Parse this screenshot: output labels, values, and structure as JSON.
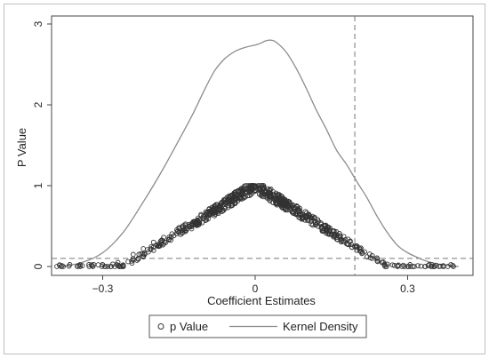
{
  "chart_data": {
    "type": "scatter",
    "title": "",
    "xlabel": "Coefficient Estimates",
    "ylabel": "P Value",
    "xlim": [
      -0.42,
      0.42
    ],
    "ylim": [
      0,
      3.05
    ],
    "xticks": [
      {
        "value": -0.3,
        "label": "−0.3"
      },
      {
        "value": 0,
        "label": "0"
      },
      {
        "value": 0.3,
        "label": "0.3"
      }
    ],
    "yticks": [
      {
        "value": 0,
        "label": "0"
      },
      {
        "value": 1,
        "label": "1"
      },
      {
        "value": 2,
        "label": "2"
      },
      {
        "value": 3,
        "label": "3"
      }
    ],
    "grid": false,
    "reference_lines": {
      "horizontal_y": 0.1,
      "vertical_x": 0.196
    },
    "legend": {
      "placement": "bottom",
      "entries": [
        {
          "label": "p Value",
          "marker": "hollow-circle"
        },
        {
          "label": "Kernel Density",
          "marker": "line"
        }
      ]
    },
    "series": [
      {
        "name": "Kernel Density",
        "kind": "line",
        "color": "#8c8c8c",
        "points": [
          [
            -0.38,
            0.0
          ],
          [
            -0.34,
            0.05
          ],
          [
            -0.3,
            0.17
          ],
          [
            -0.26,
            0.42
          ],
          [
            -0.22,
            0.8
          ],
          [
            -0.18,
            1.22
          ],
          [
            -0.14,
            1.68
          ],
          [
            -0.12,
            1.92
          ],
          [
            -0.1,
            2.18
          ],
          [
            -0.08,
            2.42
          ],
          [
            -0.06,
            2.57
          ],
          [
            -0.04,
            2.66
          ],
          [
            -0.02,
            2.71
          ],
          [
            0.0,
            2.74
          ],
          [
            0.01,
            2.76
          ],
          [
            0.02,
            2.79
          ],
          [
            0.03,
            2.8
          ],
          [
            0.04,
            2.78
          ],
          [
            0.06,
            2.66
          ],
          [
            0.08,
            2.46
          ],
          [
            0.1,
            2.21
          ],
          [
            0.12,
            1.94
          ],
          [
            0.14,
            1.7
          ],
          [
            0.16,
            1.44
          ],
          [
            0.18,
            1.26
          ],
          [
            0.2,
            1.05
          ],
          [
            0.22,
            0.85
          ],
          [
            0.24,
            0.62
          ],
          [
            0.26,
            0.42
          ],
          [
            0.28,
            0.26
          ],
          [
            0.3,
            0.17
          ],
          [
            0.32,
            0.11
          ],
          [
            0.34,
            0.06
          ],
          [
            0.37,
            0.02
          ],
          [
            0.4,
            0.0
          ]
        ]
      },
      {
        "name": "p Value",
        "kind": "scatter",
        "color": "#333333",
        "approximate_count": 700,
        "envelope": "points lie along p ≈ 1 − |x| / 0.26 with spread, peaking at 1.0 near x = 0; scattered points near p ≈ 0 for |x| > 0.25",
        "points": [
          [
            -0.39,
            0.0
          ],
          [
            -0.38,
            0.01
          ],
          [
            -0.35,
            0.0
          ],
          [
            -0.34,
            0.01
          ],
          [
            -0.3,
            0.02
          ],
          [
            -0.29,
            0.0
          ],
          [
            -0.28,
            0.03
          ],
          [
            -0.27,
            0.05
          ],
          [
            -0.26,
            0.02
          ],
          [
            -0.25,
            0.06
          ],
          [
            -0.24,
            0.08
          ],
          [
            -0.24,
            0.15
          ],
          [
            -0.23,
            0.1
          ],
          [
            -0.22,
            0.12
          ],
          [
            -0.22,
            0.22
          ],
          [
            -0.21,
            0.18
          ],
          [
            -0.2,
            0.2
          ],
          [
            -0.2,
            0.3
          ],
          [
            -0.19,
            0.25
          ],
          [
            -0.18,
            0.28
          ],
          [
            -0.18,
            0.36
          ],
          [
            -0.17,
            0.33
          ],
          [
            -0.16,
            0.38
          ],
          [
            -0.15,
            0.42
          ],
          [
            -0.15,
            0.48
          ],
          [
            -0.14,
            0.46
          ],
          [
            -0.13,
            0.5
          ],
          [
            -0.12,
            0.55
          ],
          [
            -0.11,
            0.58
          ],
          [
            -0.1,
            0.62
          ],
          [
            -0.09,
            0.66
          ],
          [
            -0.08,
            0.7
          ],
          [
            -0.07,
            0.74
          ],
          [
            -0.06,
            0.78
          ],
          [
            -0.05,
            0.82
          ],
          [
            -0.04,
            0.86
          ],
          [
            -0.03,
            0.89
          ],
          [
            -0.02,
            0.93
          ],
          [
            -0.01,
            0.96
          ],
          [
            0.0,
            0.99
          ],
          [
            0.01,
            0.96
          ],
          [
            0.02,
            0.92
          ],
          [
            0.03,
            0.88
          ],
          [
            0.04,
            0.84
          ],
          [
            0.05,
            0.8
          ],
          [
            0.06,
            0.76
          ],
          [
            0.07,
            0.72
          ],
          [
            0.08,
            0.68
          ],
          [
            0.09,
            0.64
          ],
          [
            0.1,
            0.6
          ],
          [
            0.11,
            0.56
          ],
          [
            0.12,
            0.52
          ],
          [
            0.13,
            0.48
          ],
          [
            0.14,
            0.44
          ],
          [
            0.15,
            0.4
          ],
          [
            0.16,
            0.36
          ],
          [
            0.17,
            0.32
          ],
          [
            0.18,
            0.28
          ],
          [
            0.19,
            0.24
          ],
          [
            0.2,
            0.2
          ],
          [
            0.21,
            0.16
          ],
          [
            0.22,
            0.12
          ],
          [
            0.23,
            0.1
          ],
          [
            0.24,
            0.07
          ],
          [
            0.25,
            0.05
          ],
          [
            0.26,
            0.03
          ],
          [
            0.27,
            0.02
          ],
          [
            0.28,
            0.01
          ],
          [
            0.3,
            0.0
          ],
          [
            0.32,
            0.01
          ],
          [
            0.35,
            0.0
          ],
          [
            0.37,
            0.01
          ],
          [
            0.39,
            0.0
          ]
        ]
      }
    ]
  }
}
